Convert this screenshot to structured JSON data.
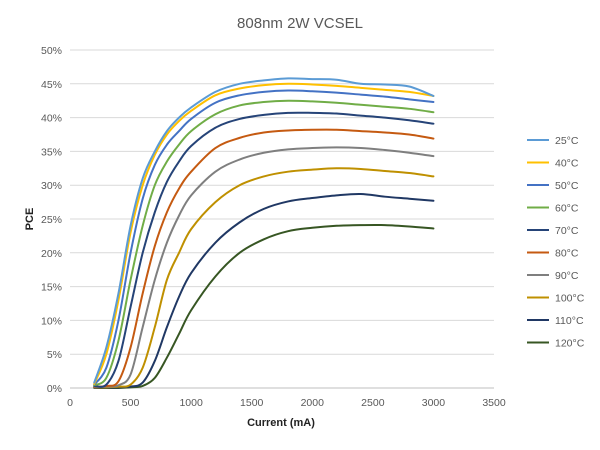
{
  "chart_data": {
    "type": "line",
    "title": "808nm 2W VCSEL",
    "xlabel": "Current (mA)",
    "ylabel": "PCE",
    "xlim": [
      0,
      3500
    ],
    "ylim": [
      0,
      50
    ],
    "x_ticks": [
      "0",
      "500",
      "1000",
      "1500",
      "2000",
      "2500",
      "3000",
      "3500"
    ],
    "y_ticks": [
      "0%",
      "5%",
      "10%",
      "15%",
      "20%",
      "25%",
      "30%",
      "35%",
      "40%",
      "45%",
      "50%"
    ],
    "grid": true,
    "legend_position": "right",
    "series": [
      {
        "name": "25°C",
        "color": "#5B9BD5",
        "x": [
          200,
          300,
          400,
          500,
          600,
          700,
          800,
          900,
          1000,
          1200,
          1400,
          1600,
          1800,
          2000,
          2200,
          2400,
          2600,
          2800,
          3000
        ],
        "y": [
          0.8,
          6,
          14,
          24,
          31,
          35,
          38,
          40,
          41.5,
          43.8,
          45,
          45.5,
          45.8,
          45.7,
          45.6,
          45,
          44.9,
          44.6,
          43.2
        ]
      },
      {
        "name": "40°C",
        "color": "#FFC000",
        "x": [
          200,
          300,
          400,
          500,
          600,
          700,
          800,
          900,
          1000,
          1200,
          1400,
          1600,
          1800,
          2000,
          2200,
          2400,
          2600,
          2800,
          3000
        ],
        "y": [
          0.6,
          5,
          13,
          23,
          30,
          34.5,
          37.5,
          39.5,
          41,
          43.3,
          44.3,
          44.8,
          45,
          44.9,
          44.7,
          44.4,
          44.1,
          43.8,
          43.2
        ]
      },
      {
        "name": "50°C",
        "color": "#4472C4",
        "x": [
          200,
          300,
          400,
          500,
          600,
          700,
          800,
          900,
          1000,
          1200,
          1400,
          1600,
          1800,
          2000,
          2200,
          2400,
          2600,
          2800,
          3000
        ],
        "y": [
          0.5,
          3,
          10,
          20,
          28,
          33,
          36,
          38,
          39.8,
          42.2,
          43.3,
          43.8,
          44,
          43.9,
          43.7,
          43.4,
          43.1,
          42.7,
          42.3
        ]
      },
      {
        "name": "60°C",
        "color": "#70AD47",
        "x": [
          200,
          300,
          400,
          500,
          600,
          700,
          800,
          900,
          1000,
          1200,
          1400,
          1600,
          1800,
          2000,
          2200,
          2400,
          2600,
          2800,
          3000
        ],
        "y": [
          0.4,
          1.5,
          7,
          16,
          24,
          30,
          33.5,
          36,
          38,
          40.5,
          41.8,
          42.3,
          42.5,
          42.4,
          42.2,
          41.9,
          41.6,
          41.3,
          40.8
        ]
      },
      {
        "name": "70°C",
        "color": "#264478",
        "x": [
          200,
          300,
          400,
          500,
          600,
          700,
          800,
          900,
          1000,
          1200,
          1400,
          1600,
          1800,
          2000,
          2200,
          2400,
          2600,
          2800,
          3000
        ],
        "y": [
          0.3,
          0.5,
          4,
          12,
          20,
          26,
          30.5,
          33.5,
          35.8,
          38.5,
          39.8,
          40.4,
          40.7,
          40.7,
          40.6,
          40.3,
          40,
          39.6,
          39.1
        ]
      },
      {
        "name": "80°C",
        "color": "#C55A11",
        "x": [
          200,
          300,
          400,
          500,
          600,
          700,
          800,
          900,
          1000,
          1200,
          1400,
          1600,
          1800,
          2000,
          2200,
          2400,
          2600,
          2800,
          3000
        ],
        "y": [
          0.2,
          0.3,
          1,
          6,
          14,
          21,
          26,
          29.5,
          32,
          35.5,
          37,
          37.8,
          38.1,
          38.2,
          38.2,
          38,
          37.8,
          37.5,
          36.9
        ]
      },
      {
        "name": "90°C",
        "color": "#7F7F7F",
        "x": [
          200,
          300,
          400,
          500,
          600,
          700,
          800,
          900,
          1000,
          1200,
          1400,
          1600,
          1800,
          2000,
          2200,
          2400,
          2600,
          2800,
          3000
        ],
        "y": [
          0.1,
          0.2,
          0.4,
          2,
          9,
          16,
          21.5,
          25.5,
          28.5,
          32,
          33.8,
          34.8,
          35.3,
          35.5,
          35.6,
          35.5,
          35.2,
          34.8,
          34.3
        ]
      },
      {
        "name": "100°C",
        "color": "#BF9000",
        "x": [
          200,
          300,
          400,
          500,
          600,
          700,
          800,
          900,
          1000,
          1200,
          1400,
          1600,
          1800,
          2000,
          2200,
          2400,
          2600,
          2800,
          3000
        ],
        "y": [
          0.1,
          0.1,
          0.2,
          0.5,
          3,
          9,
          16,
          20,
          23.5,
          27.5,
          30,
          31.3,
          32,
          32.3,
          32.5,
          32.4,
          32.1,
          31.8,
          31.3
        ]
      },
      {
        "name": "110°C",
        "color": "#203864",
        "x": [
          200,
          300,
          400,
          500,
          600,
          700,
          800,
          900,
          1000,
          1200,
          1400,
          1600,
          1800,
          2000,
          2200,
          2400,
          2600,
          2800,
          3000
        ],
        "y": [
          0.05,
          0.05,
          0.1,
          0.2,
          0.8,
          4,
          9,
          13.5,
          17,
          21.5,
          24.5,
          26.5,
          27.6,
          28.1,
          28.5,
          28.7,
          28.3,
          28,
          27.7
        ]
      },
      {
        "name": "120°C",
        "color": "#375623",
        "x": [
          200,
          300,
          400,
          500,
          600,
          700,
          800,
          900,
          1000,
          1200,
          1400,
          1600,
          1800,
          2000,
          2200,
          2400,
          2600,
          2800,
          3000
        ],
        "y": [
          0,
          0,
          0,
          0.1,
          0.3,
          1.5,
          4.5,
          8,
          11.5,
          16.5,
          20,
          22,
          23.2,
          23.7,
          24,
          24.1,
          24.1,
          23.9,
          23.6
        ]
      }
    ]
  }
}
